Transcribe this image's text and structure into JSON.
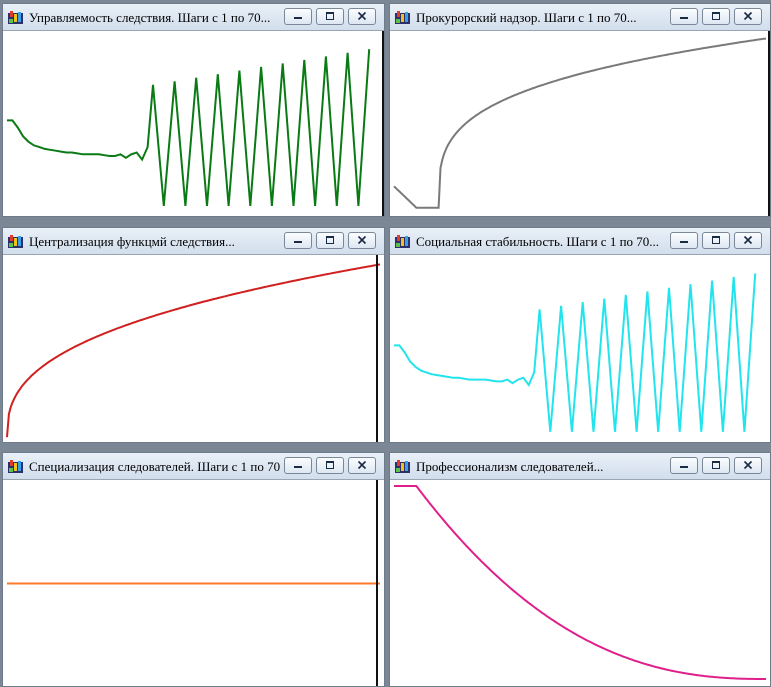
{
  "windows": [
    {
      "title": "Управляемость следствия. Шаги с 1 по 70...",
      "color": "#0a7a14",
      "kind": "oscillating"
    },
    {
      "title": "Прокурорский надзор. Шаги с 1 по 70...",
      "color": "#7a7a7a",
      "kind": "dip_rise"
    },
    {
      "title": "Централизация функцмй следствия...",
      "color": "#d02020",
      "kind": "rise"
    },
    {
      "title": "Социальная стабильность. Шаги с 1 по 70...",
      "color": "#22e4ec",
      "kind": "oscillating"
    },
    {
      "title": "Специализация следователей. Шаги с 1 по 70",
      "color": "#ff7a2a",
      "kind": "flat"
    },
    {
      "title": "Профессионализм следователей...",
      "color": "#e0208a",
      "kind": "decay"
    }
  ],
  "icons": {
    "app": "app-icon",
    "minimize": "minimize-icon",
    "maximize": "maximize-icon",
    "close": "close-icon"
  }
}
